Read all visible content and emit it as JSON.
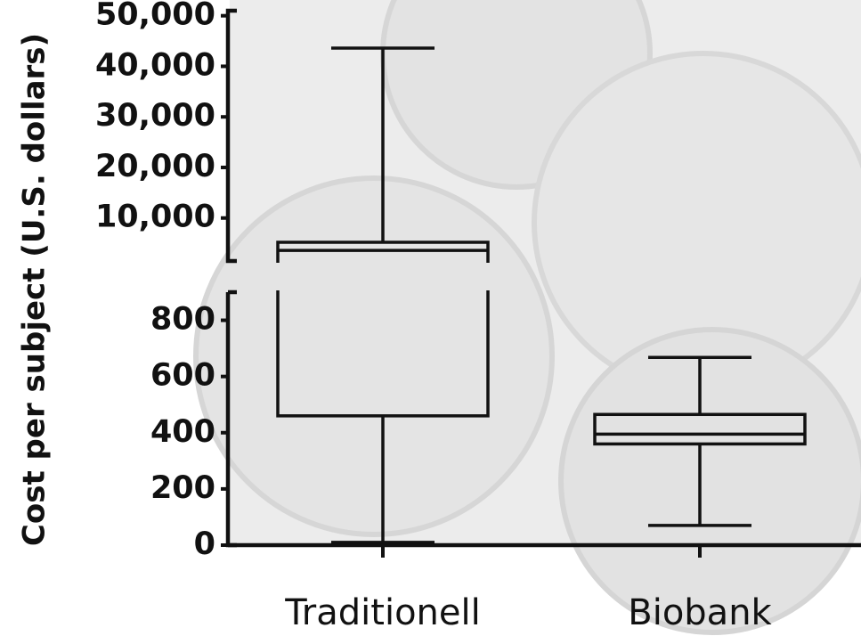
{
  "chart_data": {
    "type": "box",
    "y_label": "Cost per subject (U.S. dollars)",
    "categories": [
      "Traditionell",
      "Biobank"
    ],
    "boxes": [
      {
        "min": 10,
        "q1": 460,
        "median": 3600,
        "q3": 5200,
        "max": 43600
      },
      {
        "min": 70,
        "q1": 360,
        "median": 395,
        "q3": 465,
        "max": 668
      }
    ],
    "color": "#111111",
    "segments": [
      {
        "ylim": [
          0,
          900
        ],
        "yticks": [
          0,
          200,
          400,
          600,
          800
        ]
      },
      {
        "ylim": [
          1500,
          51000
        ],
        "yticks": [
          {
            "value": 10000,
            "label": "10,000"
          },
          {
            "value": 20000,
            "label": "20,000"
          },
          {
            "value": 30000,
            "label": "30,000"
          },
          {
            "value": 40000,
            "label": "40,000"
          },
          {
            "value": 50000,
            "label": "50,000"
          }
        ]
      }
    ]
  }
}
